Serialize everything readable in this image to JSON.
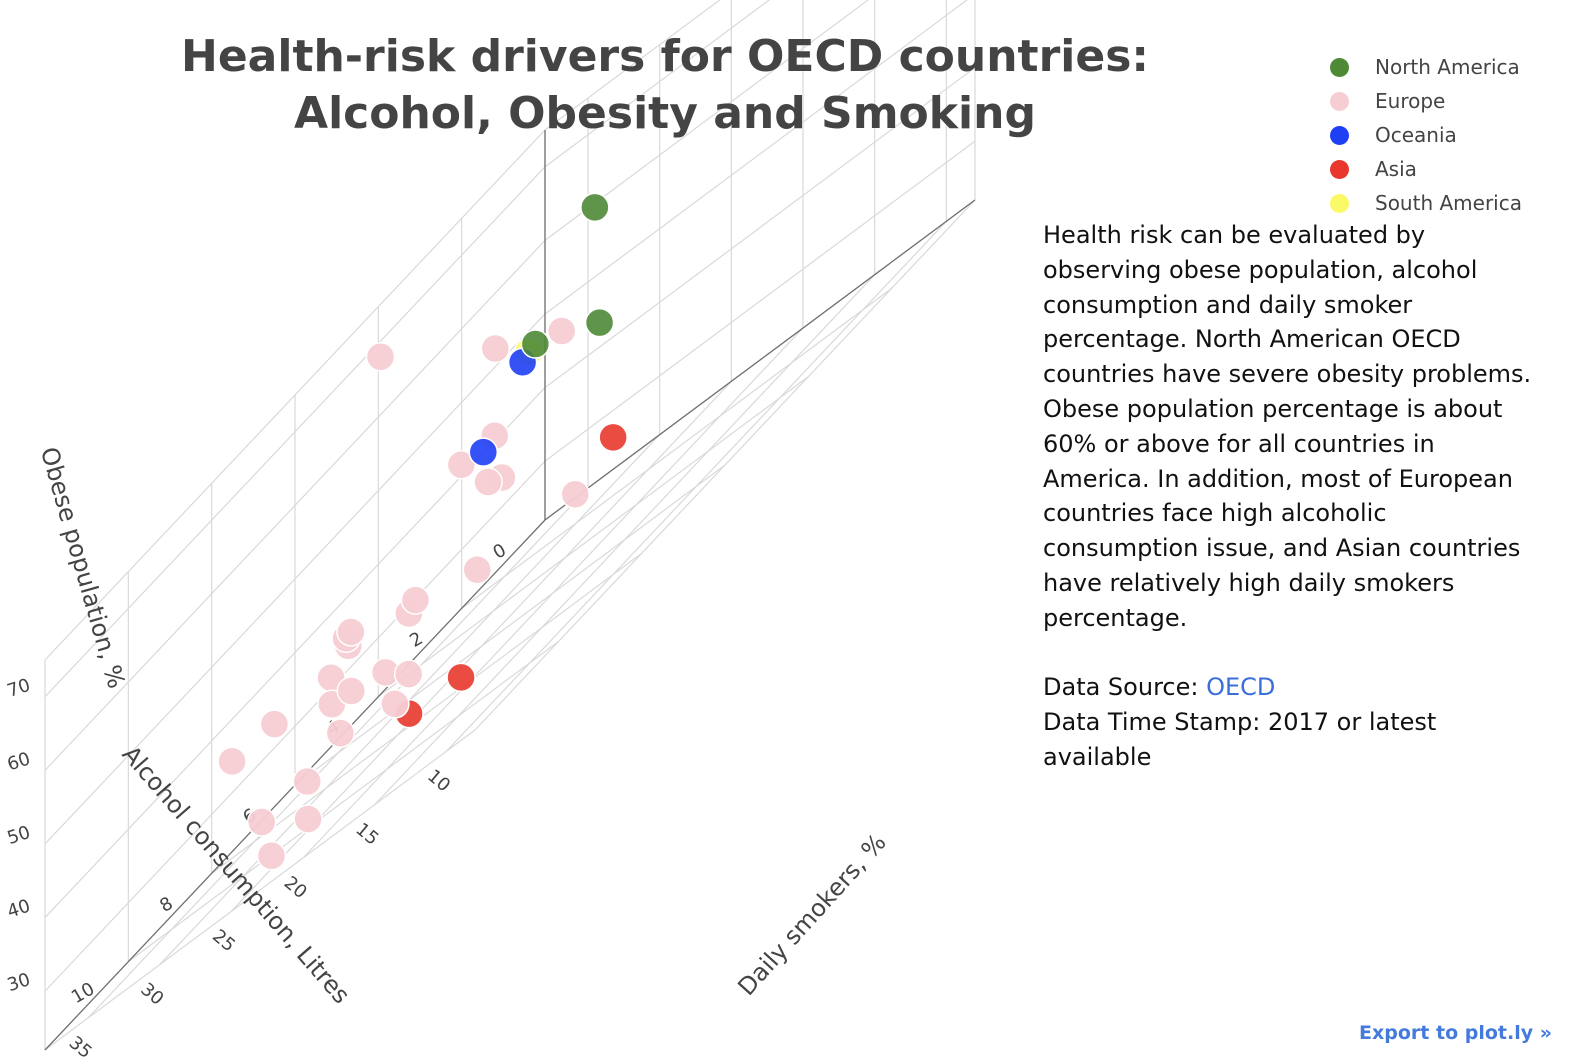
{
  "title": {
    "line1": "Health-risk drivers for OECD countries:",
    "line2": "Alcohol, Obesity and Smoking"
  },
  "legend": [
    {
      "name": "North America",
      "color": "#4e8a36"
    },
    {
      "name": "Europe",
      "color": "#f7cdd4"
    },
    {
      "name": "Oceania",
      "color": "#1f3ff5"
    },
    {
      "name": "Asia",
      "color": "#e8382e"
    },
    {
      "name": "South America",
      "color": "#fafa66"
    }
  ],
  "description": {
    "text": "Health risk can be evaluated by observing obese population, alcohol consumption and daily smoker percentage. North American OECD countries have severe obesity problems. Obese population percentage is about 60% or above for all countries in America. In addition, most of European countries face high alcoholic consumption issue, and Asian countries have relatively high daily smokers percentage.",
    "source_label": "Data Source: ",
    "source_link": "OECD",
    "timestamp": "Data Time Stamp: 2017 or latest available"
  },
  "export_link": "Export to plot.ly »",
  "chart_data": {
    "type": "scatter3d",
    "title": "Health-risk drivers for OECD countries: Alcohol, Obesity and Smoking",
    "xlabel": "Alcohol consumption, Litres",
    "ylabel": "Daily smokers, %",
    "zlabel": "Obese population, %",
    "x_ticks": [
      "0",
      "2",
      "4",
      "6",
      "8",
      "10"
    ],
    "y_ticks": [
      "10",
      "15",
      "20",
      "25",
      "30",
      "35"
    ],
    "z_ticks": [
      "30",
      "40",
      "50",
      "60",
      "70"
    ],
    "xlim": [
      0,
      12
    ],
    "ylim": [
      8,
      38
    ],
    "zlim": [
      22,
      75
    ],
    "grid": true,
    "legend_position": "top-right",
    "series": [
      {
        "name": "North America",
        "color": "#4e8a36",
        "points": [
          {
            "x": 7.3,
            "y": 13.3,
            "z": 72.5
          },
          {
            "x": 8.9,
            "y": 12.8,
            "z": 62.8
          },
          {
            "x": 7.6,
            "y": 12.1,
            "z": 56.9
          }
        ]
      },
      {
        "name": "Europe",
        "color": "#f7cdd4",
        "points": [
          {
            "x": 6.7,
            "y": 30.0,
            "z": 72.8
          },
          {
            "x": 6.8,
            "y": 21.7,
            "z": 62.5
          },
          {
            "x": 6.1,
            "y": 19.1,
            "z": 56.9
          },
          {
            "x": 9.6,
            "y": 13.6,
            "z": 55.7
          },
          {
            "x": 9.3,
            "y": 16.8,
            "z": 54.6
          },
          {
            "x": 10.0,
            "y": 12.9,
            "z": 50.8
          },
          {
            "x": 9.6,
            "y": 13.1,
            "z": 49.3
          },
          {
            "x": 11.4,
            "y": 13.9,
            "z": 44.6
          },
          {
            "x": 11.4,
            "y": 18.4,
            "z": 46.8
          },
          {
            "x": 11.0,
            "y": 19.9,
            "z": 45.7
          },
          {
            "x": 11.5,
            "y": 26.4,
            "z": 41.4
          },
          {
            "x": 11.0,
            "y": 24.9,
            "z": 41.3
          },
          {
            "x": 8.7,
            "y": 10.6,
            "z": 38.0
          },
          {
            "x": 9.4,
            "y": 15.4,
            "z": 38.9
          },
          {
            "x": 9.7,
            "y": 19.3,
            "z": 40.4
          },
          {
            "x": 9.4,
            "y": 24.4,
            "z": 41.6
          },
          {
            "x": 9.4,
            "y": 25.6,
            "z": 39.0
          },
          {
            "x": 10.0,
            "y": 23.8,
            "z": 36.4
          },
          {
            "x": 10.6,
            "y": 20.7,
            "z": 37.3
          },
          {
            "x": 11.0,
            "y": 20.3,
            "z": 33.4
          },
          {
            "x": 10.6,
            "y": 16.7,
            "z": 33.8
          },
          {
            "x": 10.5,
            "y": 18.6,
            "z": 36.2
          },
          {
            "x": 10.9,
            "y": 22.9,
            "z": 30.0
          },
          {
            "x": 11.5,
            "y": 21.1,
            "z": 25.9
          },
          {
            "x": 12.0,
            "y": 22.2,
            "z": 25.5
          },
          {
            "x": 9.0,
            "y": 31.6,
            "z": 25.7
          },
          {
            "x": 8.9,
            "y": 22.6,
            "z": 28.1
          }
        ]
      },
      {
        "name": "Oceania",
        "color": "#1f3ff5",
        "points": [
          {
            "x": 9.0,
            "y": 13.4,
            "z": 61.8
          },
          {
            "x": 10.7,
            "y": 11.2,
            "z": 56.6
          }
        ]
      },
      {
        "name": "Asia",
        "color": "#e8382e",
        "points": [
          {
            "x": 0.6,
            "y": 31.5,
            "z": 27.4
          },
          {
            "x": 8.0,
            "y": 20.6,
            "z": 23.4
          },
          {
            "x": 7.7,
            "y": 25.1,
            "z": 23.2
          }
        ]
      },
      {
        "name": "South America",
        "color": "#fafa66",
        "points": [
          {
            "x": 7.1,
            "y": 18.5,
            "z": 59.2
          }
        ]
      }
    ]
  }
}
